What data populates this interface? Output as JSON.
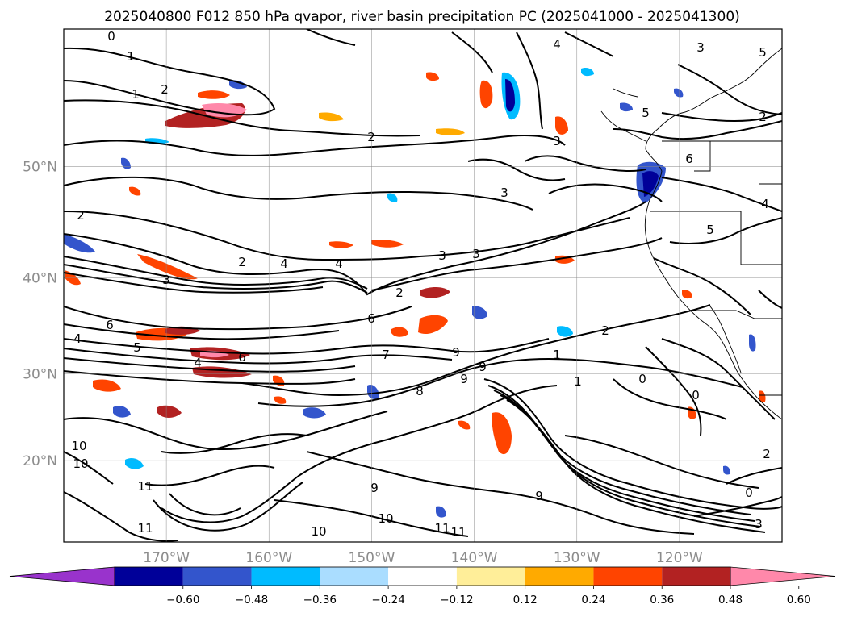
{
  "title": "2025040800 F012 850 hPa qvapor, river basin precipitation PC (2025041000 - 2025041300)",
  "map": {
    "lat_ticks": [
      {
        "label": "50°N",
        "lat": 50
      },
      {
        "label": "40°N",
        "lat": 40
      },
      {
        "label": "30°N",
        "lat": 30
      },
      {
        "label": "20°N",
        "lat": 20
      }
    ],
    "lon_ticks": [
      {
        "label": "170°W",
        "lon": -170
      },
      {
        "label": "160°W",
        "lon": -160
      },
      {
        "label": "150°W",
        "lon": -150
      },
      {
        "label": "140°W",
        "lon": -140
      },
      {
        "label": "130°W",
        "lon": -130
      },
      {
        "label": "120°W",
        "lon": -120
      }
    ],
    "extent": {
      "lon_min": -180,
      "lon_max": -110,
      "lat_min": 10,
      "lat_max": 60
    },
    "gridlines": true
  },
  "colorbar": {
    "colors": [
      "#9933cc",
      "#000099",
      "#3355cc",
      "#00bbff",
      "#aaddff",
      "#ffffff",
      "#ffee99",
      "#ffaa00",
      "#ff4400",
      "#b22222",
      "#ff88aa"
    ],
    "tick_labels": [
      "−0.60",
      "−0.48",
      "−0.36",
      "−0.24",
      "−0.12",
      "0.12",
      "0.24",
      "0.36",
      "0.48",
      "0.60"
    ],
    "extend": "both"
  },
  "contour_labels": [
    "0",
    "1",
    "1",
    "2",
    "2",
    "2",
    "2",
    "4",
    "4",
    "3",
    "3",
    "2",
    "6",
    "6",
    "4",
    "4",
    "6",
    "5",
    "3",
    "3",
    "3",
    "4",
    "5",
    "6",
    "5",
    "5",
    "3",
    "4",
    "2",
    "1",
    "0",
    "0",
    "2",
    "1",
    "7",
    "8",
    "9",
    "9",
    "9",
    "10",
    "10",
    "11",
    "11",
    "10",
    "10",
    "11",
    "11",
    "9",
    "9",
    "3",
    "2",
    "0"
  ]
}
